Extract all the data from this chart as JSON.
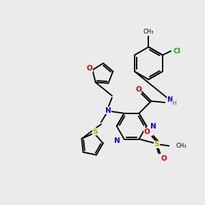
{
  "background_color": "#ebebeb",
  "atom_colors": {
    "C": "#000000",
    "N": "#0000ee",
    "O": "#dd0000",
    "S": "#bbaa00",
    "Cl": "#00bb00",
    "H": "#008888"
  },
  "figsize": [
    3.0,
    3.0
  ],
  "dpi": 100
}
